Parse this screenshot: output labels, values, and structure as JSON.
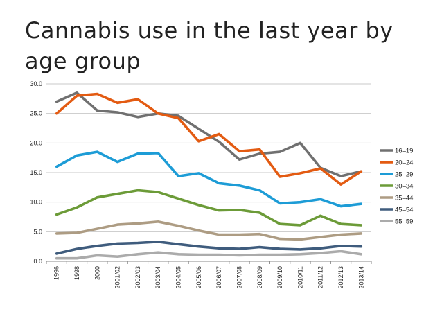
{
  "chart_data": {
    "type": "line",
    "title": "Cannabis use in the last year by age group",
    "xlabel": "",
    "ylabel": "",
    "ylim": [
      0,
      30
    ],
    "yticks": [
      "0.0",
      "5.0",
      "10.0",
      "15.0",
      "20.0",
      "25.0",
      "30.0"
    ],
    "grid": true,
    "legend_position": "right",
    "categories": [
      "1996",
      "1998",
      "2000",
      "2001/02",
      "2002/03",
      "2003/04",
      "2004/05",
      "2005/06",
      "2006/07",
      "2007/08",
      "2008/09",
      "2009/10",
      "2010/11",
      "2011/12",
      "2012/13",
      "2013/14"
    ],
    "series": [
      {
        "name": "16–19",
        "color": "#707070",
        "values": [
          27.0,
          28.5,
          25.5,
          25.2,
          24.4,
          25.0,
          24.6,
          22.4,
          20.2,
          17.2,
          18.2,
          18.5,
          20.0,
          15.8,
          14.4,
          15.2
        ]
      },
      {
        "name": "20–24",
        "color": "#e35b12",
        "values": [
          25.0,
          28.0,
          28.3,
          26.8,
          27.4,
          25.0,
          24.2,
          20.3,
          21.5,
          18.6,
          18.9,
          14.3,
          14.9,
          15.7,
          13.0,
          15.2
        ]
      },
      {
        "name": "25–29",
        "color": "#1d9cd6",
        "values": [
          16.0,
          17.9,
          18.5,
          16.8,
          18.2,
          18.3,
          14.4,
          14.9,
          13.2,
          12.8,
          12.0,
          9.8,
          10.0,
          10.5,
          9.3,
          9.7
        ]
      },
      {
        "name": "30–34",
        "color": "#6c9b38",
        "values": [
          7.9,
          9.1,
          10.8,
          11.4,
          12.0,
          11.7,
          10.6,
          9.5,
          8.6,
          8.7,
          8.2,
          6.3,
          6.1,
          7.7,
          6.3,
          6.1
        ]
      },
      {
        "name": "35–44",
        "color": "#ad9c83",
        "values": [
          4.7,
          4.8,
          5.5,
          6.2,
          6.4,
          6.7,
          6.0,
          5.2,
          4.5,
          4.5,
          4.6,
          3.8,
          3.7,
          4.1,
          4.5,
          4.7
        ]
      },
      {
        "name": "45–54",
        "color": "#3f5c7d",
        "values": [
          1.3,
          2.1,
          2.6,
          3.0,
          3.1,
          3.3,
          2.9,
          2.5,
          2.2,
          2.1,
          2.4,
          2.1,
          2.0,
          2.2,
          2.6,
          2.5
        ]
      },
      {
        "name": "55–59",
        "color": "#ababab",
        "values": [
          0.5,
          0.5,
          1.0,
          0.8,
          1.2,
          1.5,
          1.2,
          1.1,
          1.1,
          1.0,
          1.1,
          1.1,
          1.2,
          1.4,
          1.7,
          1.2
        ]
      }
    ]
  }
}
